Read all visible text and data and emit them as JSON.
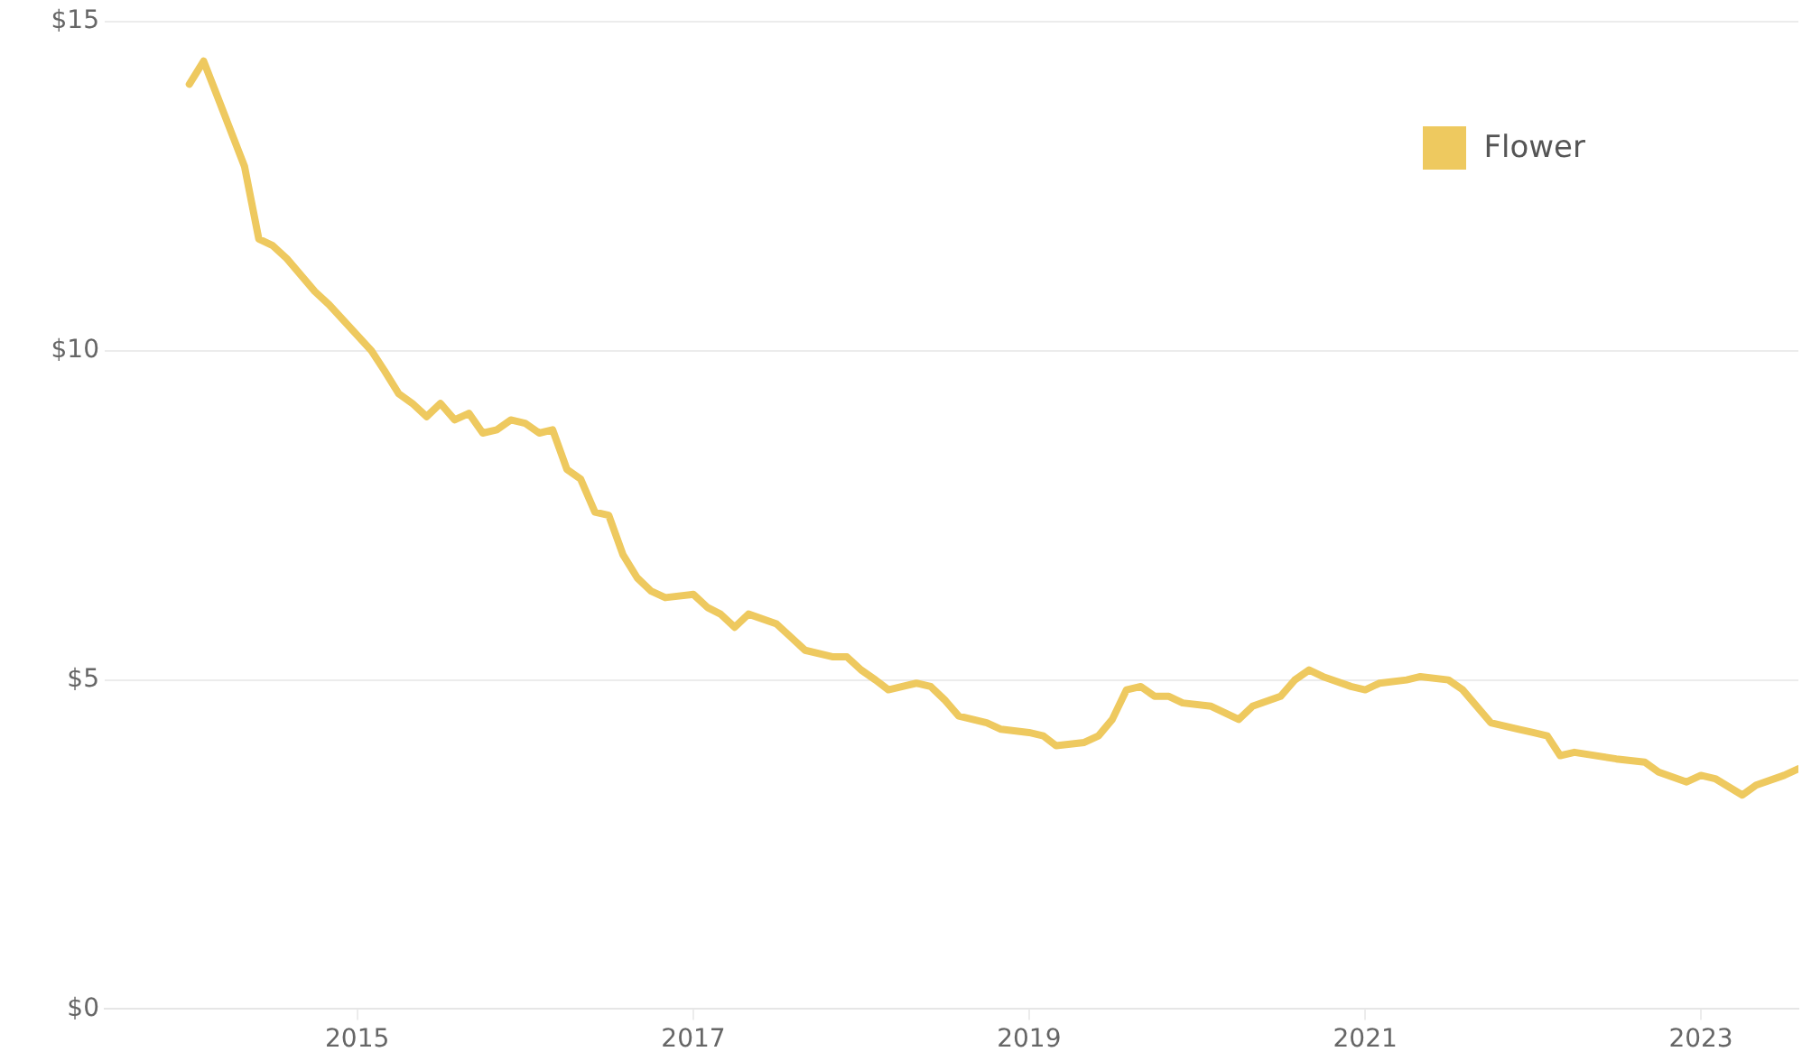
{
  "chart_data": {
    "type": "line",
    "x": [
      "2014-01",
      "2014-02",
      "2014-03",
      "2014-05",
      "2014-06",
      "2014-07",
      "2014-08",
      "2014-10",
      "2014-11",
      "2015-02",
      "2015-03",
      "2015-04",
      "2015-05",
      "2015-06",
      "2015-07",
      "2015-08",
      "2015-09",
      "2015-10",
      "2015-11",
      "2015-12",
      "2016-01",
      "2016-02",
      "2016-03",
      "2016-04",
      "2016-05",
      "2016-06",
      "2016-07",
      "2016-08",
      "2016-09",
      "2016-10",
      "2016-11",
      "2017-01",
      "2017-02",
      "2017-03",
      "2017-04",
      "2017-05",
      "2017-07",
      "2017-08",
      "2017-09",
      "2017-11",
      "2017-12",
      "2018-01",
      "2018-02",
      "2018-03",
      "2018-05",
      "2018-06",
      "2018-07",
      "2018-08",
      "2018-10",
      "2018-11",
      "2019-01",
      "2019-02",
      "2019-03",
      "2019-05",
      "2019-06",
      "2019-07",
      "2019-08",
      "2019-09",
      "2019-10",
      "2019-11",
      "2019-12",
      "2020-02",
      "2020-04",
      "2020-05",
      "2020-07",
      "2020-08",
      "2020-09",
      "2020-10",
      "2020-12",
      "2021-01",
      "2021-02",
      "2021-04",
      "2021-05",
      "2021-07",
      "2021-08",
      "2021-10",
      "2021-12",
      "2022-01",
      "2022-02",
      "2022-03",
      "2022-04",
      "2022-07",
      "2022-09",
      "2022-10",
      "2022-12",
      "2023-01",
      "2023-02",
      "2023-04",
      "2023-05",
      "2023-07",
      "2023-08"
    ],
    "series": [
      {
        "name": "Flower",
        "color": "#eec95f",
        "values": [
          14.05,
          14.4,
          13.9,
          12.8,
          11.7,
          11.6,
          11.4,
          10.9,
          10.7,
          10.0,
          9.7,
          9.35,
          9.2,
          9.0,
          9.2,
          8.95,
          9.05,
          8.75,
          8.8,
          8.95,
          8.9,
          8.75,
          8.8,
          8.2,
          8.05,
          7.55,
          7.5,
          6.9,
          6.55,
          6.35,
          6.25,
          6.3,
          6.1,
          6.0,
          5.8,
          6.0,
          5.85,
          5.65,
          5.45,
          5.35,
          5.35,
          5.15,
          5.0,
          4.85,
          4.95,
          4.9,
          4.7,
          4.45,
          4.35,
          4.25,
          4.2,
          4.15,
          4.0,
          4.05,
          4.15,
          4.4,
          4.85,
          4.9,
          4.75,
          4.75,
          4.65,
          4.6,
          4.4,
          4.6,
          4.75,
          5.0,
          5.15,
          5.05,
          4.9,
          4.85,
          4.95,
          5.0,
          5.05,
          5.0,
          4.85,
          4.35,
          4.25,
          4.2,
          4.15,
          3.85,
          3.9,
          3.8,
          3.75,
          3.6,
          3.45,
          3.55,
          3.5,
          3.25,
          3.4,
          3.55,
          3.65
        ]
      }
    ],
    "xlim": [
      "2013-07",
      "2023-08"
    ],
    "xticks": [
      "2015",
      "2017",
      "2019",
      "2021",
      "2023"
    ],
    "ylim": [
      0,
      15
    ],
    "yticks": [
      {
        "value": 0,
        "label": "$0"
      },
      {
        "value": 5,
        "label": "$5"
      },
      {
        "value": 10,
        "label": "$10"
      },
      {
        "value": 15,
        "label": "$15"
      }
    ],
    "grid": "y",
    "legend": "top right",
    "marker": "none",
    "line_style": "solid"
  }
}
